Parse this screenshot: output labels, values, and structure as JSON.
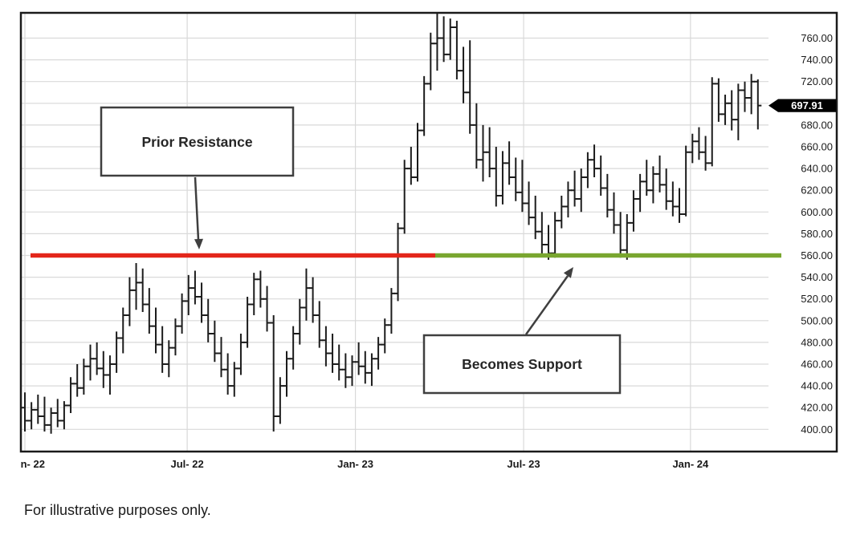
{
  "annotations": {
    "prior_resistance": "Prior Resistance",
    "becomes_support": "Becomes Support"
  },
  "footnote": "For illustrative purposes only.",
  "colors": {
    "resistance_line": "#e3261a",
    "support_line": "#79a62f",
    "bar": "#1c1c1c",
    "grid": "#d9d9d9",
    "frame": "#1a1a1a",
    "annotation": "#3f3f3f",
    "tag_bg": "#000000",
    "tag_text": "#ffffff"
  },
  "chart_data": {
    "type": "ohlc-bar",
    "x_ticks": [
      {
        "label": "n- 22",
        "grid_i": 0,
        "label_i": 1.2
      },
      {
        "label": "Jul- 22",
        "grid_i": 24.8,
        "label_i": 24.8
      },
      {
        "label": "Jan- 23",
        "grid_i": 50.5,
        "label_i": 50.5
      },
      {
        "label": "Jul- 23",
        "grid_i": 76.2,
        "label_i": 76.2
      },
      {
        "label": "Jan- 24",
        "grid_i": 101.7,
        "label_i": 101.7
      }
    ],
    "y_tick_labels": [
      "760.00",
      "740.00",
      "720.00",
      "680.00",
      "660.00",
      "640.00",
      "620.00",
      "600.00",
      "580.00",
      "560.00",
      "540.00",
      "520.00",
      "500.00",
      "480.00",
      "460.00",
      "440.00",
      "420.00",
      "400.00"
    ],
    "y_grid_values": [
      400,
      420,
      440,
      460,
      480,
      500,
      520,
      540,
      560,
      580,
      600,
      620,
      640,
      660,
      680,
      700,
      720,
      740,
      760
    ],
    "ylim": [
      378,
      784
    ],
    "grid": true,
    "support_resistance_level": 560,
    "last_price": 697.91,
    "last_price_label": "697.91",
    "bars_format": [
      "open",
      "high",
      "low",
      "close"
    ],
    "bars": [
      [
        420,
        434,
        398,
        408
      ],
      [
        408,
        425,
        400,
        418
      ],
      [
        418,
        432,
        405,
        412
      ],
      [
        412,
        430,
        398,
        404
      ],
      [
        404,
        420,
        396,
        415
      ],
      [
        415,
        428,
        402,
        408
      ],
      [
        408,
        426,
        400,
        422
      ],
      [
        422,
        448,
        415,
        442
      ],
      [
        442,
        460,
        430,
        438
      ],
      [
        438,
        465,
        432,
        458
      ],
      [
        458,
        478,
        445,
        465
      ],
      [
        465,
        480,
        450,
        456
      ],
      [
        456,
        472,
        438,
        450
      ],
      [
        450,
        468,
        432,
        460
      ],
      [
        460,
        490,
        452,
        484
      ],
      [
        484,
        512,
        470,
        505
      ],
      [
        505,
        540,
        495,
        528
      ],
      [
        528,
        553,
        510,
        535
      ],
      [
        535,
        548,
        508,
        515
      ],
      [
        515,
        530,
        488,
        495
      ],
      [
        495,
        512,
        470,
        478
      ],
      [
        478,
        495,
        452,
        460
      ],
      [
        460,
        482,
        448,
        475
      ],
      [
        475,
        502,
        468,
        495
      ],
      [
        495,
        525,
        488,
        518
      ],
      [
        518,
        542,
        505,
        530
      ],
      [
        530,
        546,
        515,
        522
      ],
      [
        522,
        535,
        498,
        505
      ],
      [
        505,
        520,
        480,
        488
      ],
      [
        488,
        500,
        462,
        470
      ],
      [
        470,
        485,
        448,
        455
      ],
      [
        455,
        470,
        432,
        440
      ],
      [
        440,
        462,
        430,
        456
      ],
      [
        456,
        488,
        450,
        480
      ],
      [
        480,
        522,
        475,
        515
      ],
      [
        515,
        544,
        505,
        538
      ],
      [
        538,
        546,
        512,
        520
      ],
      [
        520,
        532,
        490,
        498
      ],
      [
        498,
        505,
        398,
        412
      ],
      [
        412,
        448,
        405,
        440
      ],
      [
        440,
        472,
        430,
        465
      ],
      [
        465,
        495,
        455,
        488
      ],
      [
        488,
        520,
        478,
        512
      ],
      [
        512,
        548,
        500,
        530
      ],
      [
        530,
        540,
        498,
        505
      ],
      [
        505,
        518,
        475,
        482
      ],
      [
        482,
        495,
        458,
        470
      ],
      [
        470,
        488,
        452,
        460
      ],
      [
        460,
        478,
        445,
        455
      ],
      [
        455,
        470,
        438,
        448
      ],
      [
        448,
        468,
        440,
        462
      ],
      [
        462,
        480,
        450,
        458
      ],
      [
        458,
        472,
        442,
        452
      ],
      [
        452,
        470,
        440,
        465
      ],
      [
        465,
        485,
        455,
        478
      ],
      [
        478,
        502,
        470,
        496
      ],
      [
        496,
        530,
        488,
        525
      ],
      [
        525,
        590,
        518,
        585
      ],
      [
        585,
        648,
        580,
        640
      ],
      [
        640,
        660,
        625,
        632
      ],
      [
        632,
        682,
        628,
        675
      ],
      [
        675,
        725,
        670,
        718
      ],
      [
        718,
        765,
        712,
        755
      ],
      [
        755,
        783,
        730,
        760
      ],
      [
        760,
        780,
        738,
        745
      ],
      [
        745,
        778,
        740,
        770
      ],
      [
        770,
        776,
        722,
        730
      ],
      [
        730,
        752,
        700,
        710
      ],
      [
        710,
        758,
        672,
        680
      ],
      [
        680,
        700,
        640,
        648
      ],
      [
        648,
        680,
        628,
        655
      ],
      [
        655,
        678,
        632,
        640
      ],
      [
        640,
        660,
        605,
        615
      ],
      [
        615,
        656,
        607,
        645
      ],
      [
        645,
        665,
        625,
        632
      ],
      [
        632,
        650,
        610,
        618
      ],
      [
        618,
        648,
        600,
        608
      ],
      [
        608,
        628,
        588,
        595
      ],
      [
        595,
        615,
        575,
        582
      ],
      [
        582,
        600,
        560,
        570
      ],
      [
        570,
        588,
        556,
        562
      ],
      [
        562,
        600,
        558,
        592
      ],
      [
        592,
        615,
        585,
        605
      ],
      [
        605,
        628,
        595,
        620
      ],
      [
        620,
        638,
        605,
        612
      ],
      [
        612,
        640,
        600,
        632
      ],
      [
        632,
        655,
        622,
        648
      ],
      [
        648,
        662,
        632,
        640
      ],
      [
        640,
        652,
        615,
        622
      ],
      [
        622,
        635,
        595,
        602
      ],
      [
        602,
        618,
        580,
        588
      ],
      [
        588,
        600,
        558,
        565
      ],
      [
        565,
        598,
        556,
        590
      ],
      [
        590,
        620,
        582,
        612
      ],
      [
        612,
        635,
        600,
        628
      ],
      [
        628,
        648,
        615,
        620
      ],
      [
        620,
        642,
        608,
        635
      ],
      [
        635,
        652,
        618,
        625
      ],
      [
        625,
        640,
        602,
        610
      ],
      [
        610,
        628,
        596,
        605
      ],
      [
        605,
        622,
        590,
        598
      ],
      [
        598,
        661,
        596,
        655
      ],
      [
        655,
        672,
        645,
        665
      ],
      [
        665,
        678,
        648,
        655
      ],
      [
        655,
        670,
        638,
        645
      ],
      [
        645,
        724,
        642,
        718
      ],
      [
        718,
        723,
        683,
        690
      ],
      [
        690,
        708,
        680,
        700
      ],
      [
        700,
        712,
        675,
        685
      ],
      [
        685,
        718,
        666,
        712
      ],
      [
        712,
        720,
        692,
        705
      ],
      [
        705,
        727,
        690,
        720
      ],
      [
        720,
        722,
        676,
        697.91
      ]
    ]
  }
}
